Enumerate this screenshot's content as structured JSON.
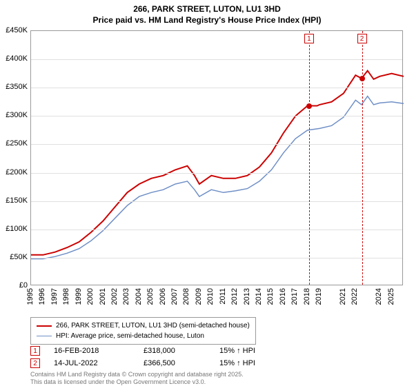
{
  "title": {
    "line1": "266, PARK STREET, LUTON, LU1 3HD",
    "line2": "Price paid vs. HM Land Registry's House Price Index (HPI)",
    "fontsize": 12,
    "weight": "bold"
  },
  "chart": {
    "type": "line",
    "background_color": "#ffffff",
    "grid_color": "#e0e0e0",
    "border_color": "#999999",
    "xlim": [
      1995,
      2026
    ],
    "ylim": [
      0,
      450000
    ],
    "ytick_step": 50000,
    "yticks": [
      {
        "v": 0,
        "label": "£0"
      },
      {
        "v": 50000,
        "label": "£50K"
      },
      {
        "v": 100000,
        "label": "£100K"
      },
      {
        "v": 150000,
        "label": "£150K"
      },
      {
        "v": 200000,
        "label": "£200K"
      },
      {
        "v": 250000,
        "label": "£250K"
      },
      {
        "v": 300000,
        "label": "£300K"
      },
      {
        "v": 350000,
        "label": "£350K"
      },
      {
        "v": 400000,
        "label": "£400K"
      },
      {
        "v": 450000,
        "label": "£450K"
      }
    ],
    "xticks": [
      1995,
      1996,
      1997,
      1998,
      1999,
      2000,
      2001,
      2002,
      2003,
      2004,
      2005,
      2006,
      2007,
      2008,
      2009,
      2010,
      2011,
      2012,
      2013,
      2014,
      2015,
      2016,
      2017,
      2018,
      2019,
      2021,
      2022,
      2024,
      2025
    ],
    "series": [
      {
        "name": "266, PARK STREET, LUTON, LU1 3HD (semi-detached house)",
        "color": "#cc0000",
        "line_width": 2,
        "data": [
          [
            1995,
            55000
          ],
          [
            1996,
            55000
          ],
          [
            1997,
            60000
          ],
          [
            1998,
            68000
          ],
          [
            1999,
            78000
          ],
          [
            2000,
            95000
          ],
          [
            2001,
            115000
          ],
          [
            2002,
            140000
          ],
          [
            2003,
            165000
          ],
          [
            2004,
            180000
          ],
          [
            2005,
            190000
          ],
          [
            2006,
            195000
          ],
          [
            2007,
            205000
          ],
          [
            2008,
            212000
          ],
          [
            2008.6,
            195000
          ],
          [
            2009,
            180000
          ],
          [
            2010,
            195000
          ],
          [
            2011,
            190000
          ],
          [
            2012,
            190000
          ],
          [
            2013,
            195000
          ],
          [
            2014,
            210000
          ],
          [
            2015,
            235000
          ],
          [
            2016,
            270000
          ],
          [
            2017,
            300000
          ],
          [
            2018,
            318000
          ],
          [
            2018.8,
            318000
          ],
          [
            2019,
            320000
          ],
          [
            2020,
            325000
          ],
          [
            2021,
            340000
          ],
          [
            2022,
            372000
          ],
          [
            2022.5,
            366500
          ],
          [
            2023,
            380000
          ],
          [
            2023.5,
            365000
          ],
          [
            2024,
            370000
          ],
          [
            2025,
            375000
          ],
          [
            2026,
            370000
          ]
        ]
      },
      {
        "name": "HPI: Average price, semi-detached house, Luton",
        "color": "#6f8fc6",
        "line_width": 1.5,
        "data": [
          [
            1995,
            48000
          ],
          [
            1996,
            48000
          ],
          [
            1997,
            52000
          ],
          [
            1998,
            58000
          ],
          [
            1999,
            66000
          ],
          [
            2000,
            80000
          ],
          [
            2001,
            98000
          ],
          [
            2002,
            120000
          ],
          [
            2003,
            142000
          ],
          [
            2004,
            158000
          ],
          [
            2005,
            165000
          ],
          [
            2006,
            170000
          ],
          [
            2007,
            180000
          ],
          [
            2008,
            185000
          ],
          [
            2008.6,
            170000
          ],
          [
            2009,
            158000
          ],
          [
            2010,
            170000
          ],
          [
            2011,
            165000
          ],
          [
            2012,
            168000
          ],
          [
            2013,
            172000
          ],
          [
            2014,
            185000
          ],
          [
            2015,
            205000
          ],
          [
            2016,
            235000
          ],
          [
            2017,
            260000
          ],
          [
            2018,
            275000
          ],
          [
            2019,
            278000
          ],
          [
            2020,
            283000
          ],
          [
            2021,
            298000
          ],
          [
            2022,
            328000
          ],
          [
            2022.5,
            320000
          ],
          [
            2023,
            335000
          ],
          [
            2023.5,
            320000
          ],
          [
            2024,
            323000
          ],
          [
            2025,
            325000
          ],
          [
            2026,
            322000
          ]
        ]
      }
    ],
    "sale_markers": [
      {
        "n": 1,
        "x": 2018.13,
        "y": 318000,
        "color": "#cc0000"
      },
      {
        "n": 2,
        "x": 2022.53,
        "y": 366500,
        "color": "#cc0000"
      }
    ]
  },
  "legend": {
    "border_color": "#999999",
    "items": [
      {
        "color": "#cc0000",
        "width": 2,
        "label": "266, PARK STREET, LUTON, LU1 3HD (semi-detached house)"
      },
      {
        "color": "#6f8fc6",
        "width": 1.5,
        "label": "HPI: Average price, semi-detached house, Luton"
      }
    ]
  },
  "sales": [
    {
      "n": 1,
      "marker_color": "#cc0000",
      "date": "16-FEB-2018",
      "price": "£318,000",
      "delta": "15% ↑ HPI"
    },
    {
      "n": 2,
      "marker_color": "#cc0000",
      "date": "14-JUL-2022",
      "price": "£366,500",
      "delta": "15% ↑ HPI"
    }
  ],
  "disclaimer": {
    "line1": "Contains HM Land Registry data © Crown copyright and database right 2025.",
    "line2": "This data is licensed under the Open Government Licence v3.0.",
    "color": "#777777"
  }
}
